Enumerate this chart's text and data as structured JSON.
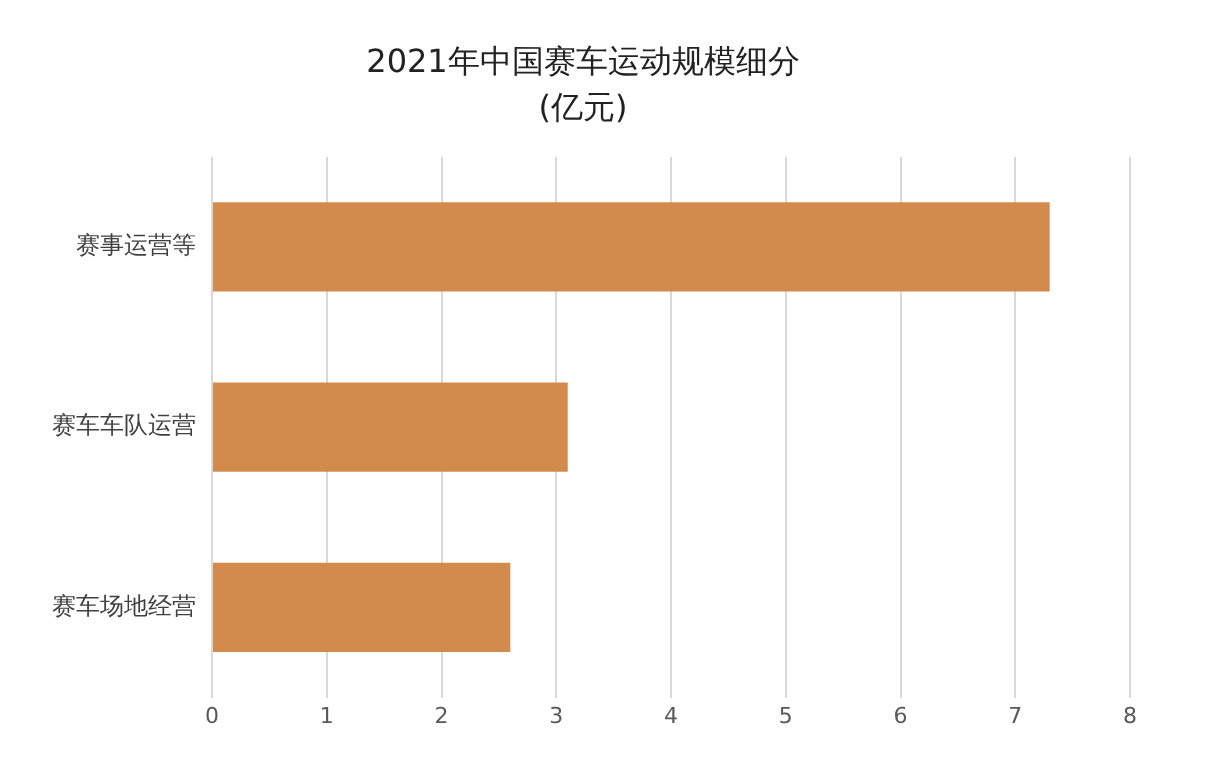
{
  "chart_data": {
    "type": "bar",
    "orientation": "horizontal",
    "title": "2021年中国赛车运动规模细分",
    "subtitle": "(亿元)",
    "categories": [
      "赛事运营等",
      "赛车车队运营",
      "赛车场地经营"
    ],
    "values": [
      7.3,
      3.1,
      2.6
    ],
    "color": "#d38b4d",
    "xlim": [
      0,
      8
    ],
    "xticks": [
      0,
      1,
      2,
      3,
      4,
      5,
      6,
      7,
      8
    ],
    "grid": "x",
    "legend": false
  }
}
